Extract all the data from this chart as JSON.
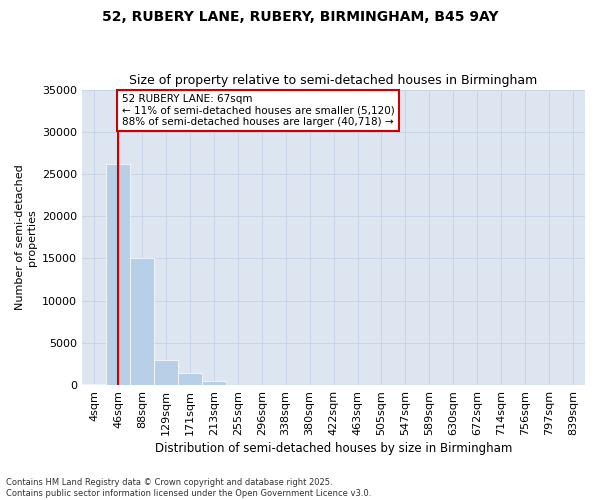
{
  "title_line1": "52, RUBERY LANE, RUBERY, BIRMINGHAM, B45 9AY",
  "title_line2": "Size of property relative to semi-detached houses in Birmingham",
  "xlabel": "Distribution of semi-detached houses by size in Birmingham",
  "ylabel": "Number of semi-detached\nproperties",
  "bin_labels": [
    "4sqm",
    "46sqm",
    "88sqm",
    "129sqm",
    "171sqm",
    "213sqm",
    "255sqm",
    "296sqm",
    "338sqm",
    "380sqm",
    "422sqm",
    "463sqm",
    "505sqm",
    "547sqm",
    "589sqm",
    "630sqm",
    "672sqm",
    "714sqm",
    "756sqm",
    "797sqm",
    "839sqm"
  ],
  "bin_values": [
    180,
    26200,
    15000,
    3000,
    1400,
    500,
    0,
    0,
    0,
    0,
    0,
    0,
    0,
    0,
    0,
    0,
    0,
    0,
    0,
    0,
    0
  ],
  "bar_color": "#b8cfe8",
  "property_label": "52 RUBERY LANE: 67sqm",
  "smaller_pct": "11%",
  "smaller_count": "5,120",
  "larger_pct": "88%",
  "larger_count": "40,718",
  "vline_color": "#cc0000",
  "annotation_box_color": "#cc0000",
  "ylim": [
    0,
    35000
  ],
  "yticks": [
    0,
    5000,
    10000,
    15000,
    20000,
    25000,
    30000,
    35000
  ],
  "grid_color": "#c8d4e8",
  "background_color": "#dde6f0",
  "footer_line1": "Contains HM Land Registry data © Crown copyright and database right 2025.",
  "footer_line2": "Contains public sector information licensed under the Open Government Licence v3.0."
}
